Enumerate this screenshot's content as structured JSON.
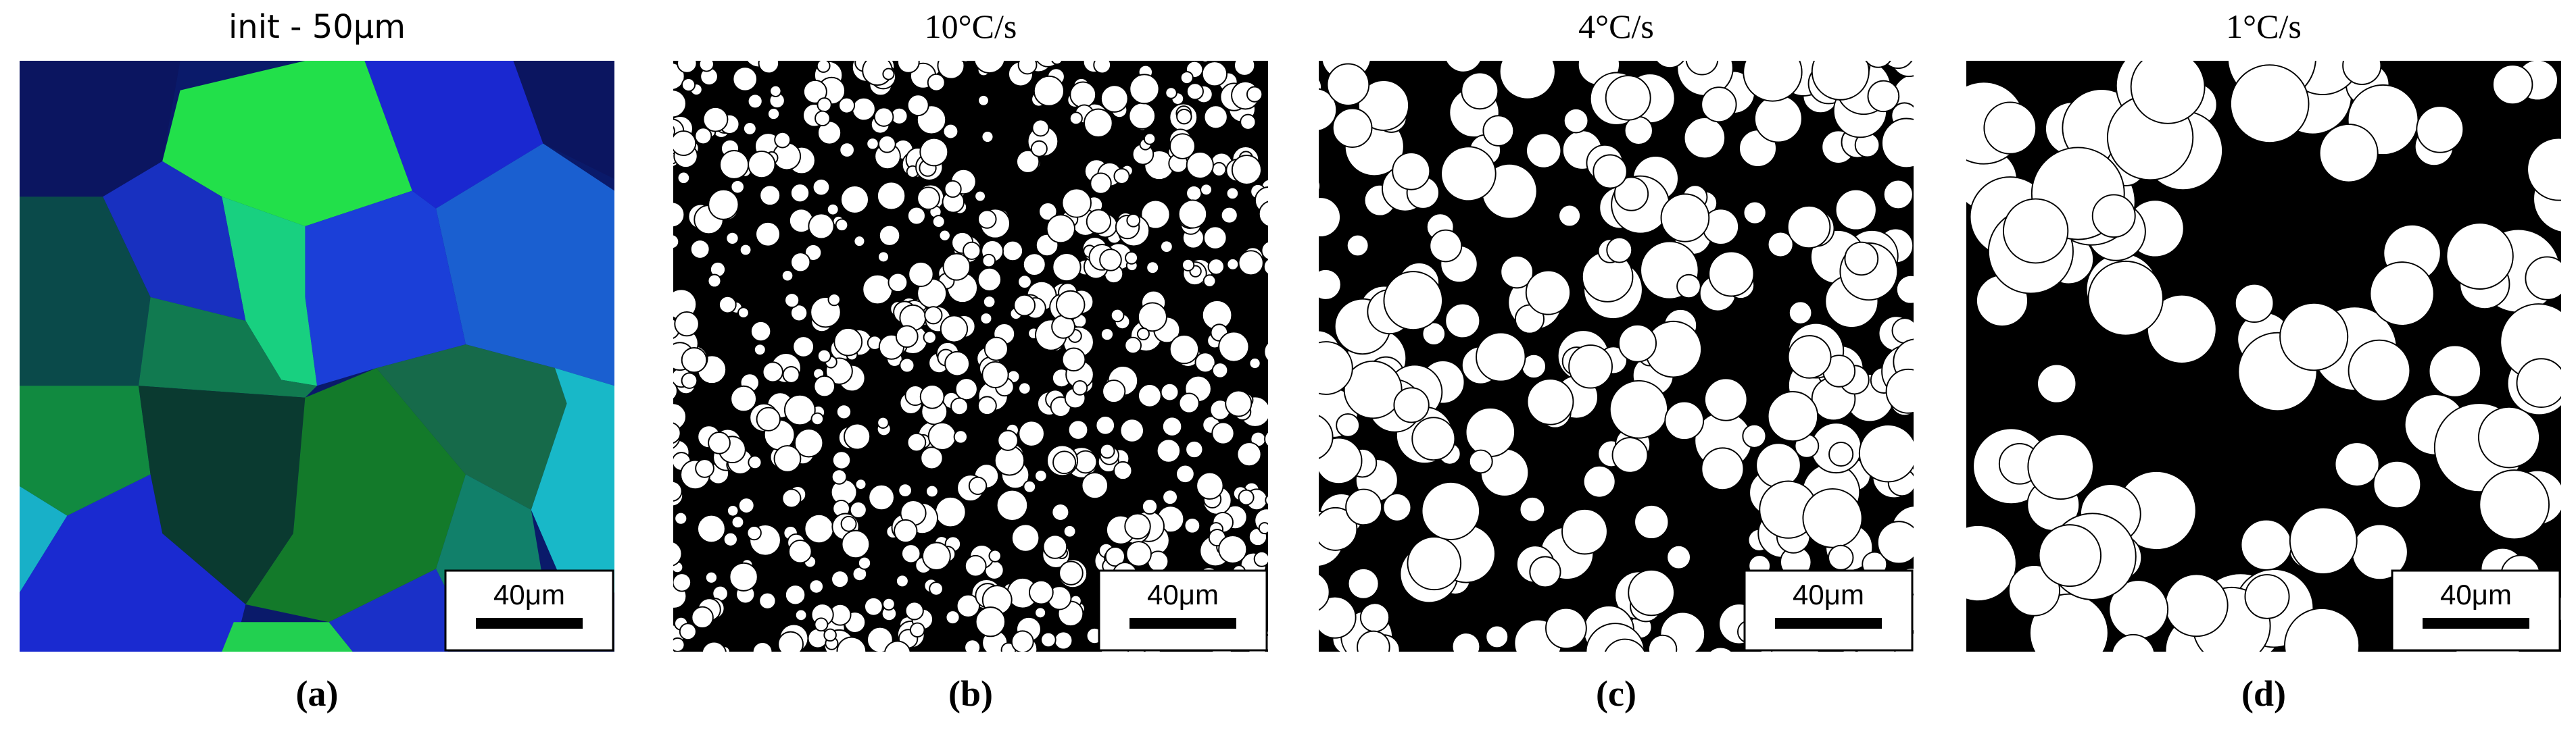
{
  "panels": [
    {
      "title": "init - 50μm",
      "scale_bar": "40μm",
      "caption": "(a)"
    },
    {
      "title": "10°C/s",
      "scale_bar": "40μm",
      "caption": "(b)"
    },
    {
      "title": "4°C/s",
      "scale_bar": "40μm",
      "caption": "(c)"
    },
    {
      "title": "1°C/s",
      "scale_bar": "40μm",
      "caption": "(d)"
    }
  ]
}
